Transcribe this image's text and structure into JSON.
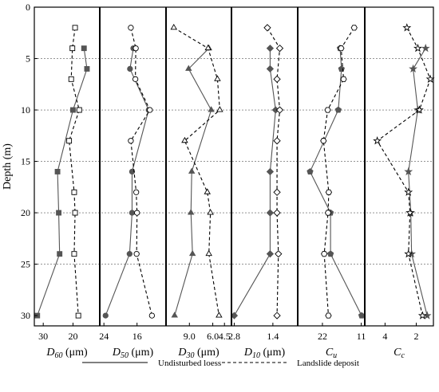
{
  "chart_data": {
    "type": "line",
    "ylabel": "Depth (m)",
    "ylim": [
      0,
      31
    ],
    "y_ticks": [
      "0",
      "5",
      "10",
      "15",
      "20",
      "25",
      "30"
    ],
    "gridlines_depth": [
      5,
      10,
      15,
      20,
      25
    ],
    "legend": {
      "position": "bottom",
      "entries": [
        {
          "label": "Undisturbed loess",
          "style": "solid"
        },
        {
          "label": "Landslide deposit",
          "style": "dashed"
        }
      ]
    },
    "panels": [
      {
        "xlabel_main": "D",
        "xlabel_sub": "60",
        "xlabel_unit": " (μm)",
        "xlim": [
          33,
          11
        ],
        "x_ticks": [
          30,
          20
        ],
        "series": [
          {
            "name": "Undisturbed loess",
            "marker": "square-filled",
            "depth": [
              4,
              6,
              10,
              16,
              20,
              24,
              30
            ],
            "values": [
              16.3,
              15.3,
              20.0,
              25.2,
              24.8,
              24.5,
              32.0
            ]
          },
          {
            "name": "Landslide deposit",
            "marker": "square-open",
            "depth": [
              2,
              4,
              7,
              10,
              13,
              18,
              20,
              24,
              30
            ],
            "values": [
              19.3,
              20.2,
              20.6,
              17.9,
              21.3,
              19.6,
              19.3,
              19.6,
              18.2
            ]
          }
        ]
      },
      {
        "xlabel_main": "D",
        "xlabel_sub": "50",
        "xlabel_unit": " (μm)",
        "xlim": [
          25,
          9
        ],
        "x_ticks": [
          24,
          16
        ],
        "series": [
          {
            "name": "Undisturbed loess",
            "marker": "circle-filled",
            "depth": [
              4,
              6,
              10,
              16,
              20,
              24,
              30
            ],
            "values": [
              16.9,
              17.7,
              13.2,
              17.2,
              17.2,
              17.8,
              23.6
            ]
          },
          {
            "name": "Landslide deposit",
            "marker": "circle-open",
            "depth": [
              2,
              4,
              7,
              10,
              13,
              18,
              20,
              24,
              30
            ],
            "values": [
              17.5,
              16.3,
              16.4,
              12.9,
              17.5,
              16.2,
              16.0,
              16.1,
              12.4
            ]
          }
        ]
      },
      {
        "xlabel_main": "D",
        "xlabel_sub": "30",
        "xlabel_unit": " (μm)",
        "xlim": [
          12,
          3.6
        ],
        "x_ticks": [
          9.0,
          6.0,
          4.5
        ],
        "series": [
          {
            "name": "Undisturbed loess",
            "marker": "triangle-filled",
            "depth": [
              4,
              6,
              10,
              16,
              20,
              24,
              30
            ],
            "values": [
              6.5,
              9.1,
              6.2,
              8.7,
              8.8,
              8.6,
              10.9
            ]
          },
          {
            "name": "Landslide deposit",
            "marker": "triangle-open",
            "depth": [
              2,
              4,
              7,
              10,
              13,
              18,
              20,
              24,
              30
            ],
            "values": [
              11.0,
              6.6,
              5.4,
              5.1,
              9.6,
              6.7,
              6.3,
              6.5,
              5.2
            ]
          }
        ]
      },
      {
        "xlabel_main": "D",
        "xlabel_sub": "10",
        "xlabel_unit": " (μm)",
        "xlim": [
          2.9,
          0.5
        ],
        "x_ticks": [
          2.8,
          1.4
        ],
        "series": [
          {
            "name": "Undisturbed loess",
            "marker": "diamond-filled",
            "depth": [
              4,
              6,
              10,
              16,
              20,
              24,
              30
            ],
            "values": [
              1.5,
              1.5,
              1.3,
              1.5,
              1.5,
              1.5,
              2.8
            ]
          },
          {
            "name": "Landslide deposit",
            "marker": "diamond-open",
            "depth": [
              2,
              4,
              7,
              10,
              13,
              18,
              20,
              24,
              30
            ],
            "values": [
              1.6,
              1.15,
              1.25,
              1.15,
              1.25,
              1.25,
              1.25,
              1.2,
              1.25
            ]
          }
        ]
      },
      {
        "xlabel_main": "C",
        "xlabel_sub": "u",
        "xlabel_unit": "",
        "xlim": [
          29,
          10
        ],
        "x_ticks": [
          22,
          11
        ],
        "series": [
          {
            "name": "Undisturbed loess",
            "marker": "pentagon-filled",
            "depth": [
              4,
              6,
              10,
              16,
              20,
              24,
              30
            ],
            "values": [
              17.0,
              16.6,
              17.5,
              25.5,
              19.7,
              19.7,
              10.9
            ]
          },
          {
            "name": "Landslide deposit",
            "marker": "hexagon-open",
            "depth": [
              2,
              4,
              7,
              10,
              13,
              18,
              20,
              24,
              30
            ],
            "values": [
              13.0,
              16.7,
              16.0,
              20.5,
              21.7,
              20.2,
              20.4,
              21.5,
              20.3
            ]
          }
        ]
      },
      {
        "xlabel_main": "C",
        "xlabel_sub": "c",
        "xlabel_unit": "",
        "xlim": [
          5.3,
          0.9
        ],
        "x_ticks": [
          4,
          2
        ],
        "series": [
          {
            "name": "Undisturbed loess",
            "marker": "star-filled",
            "depth": [
              4,
              6,
              10,
              16,
              20,
              24,
              30
            ],
            "values": [
              1.4,
              2.2,
              1.9,
              2.5,
              2.35,
              2.3,
              1.3
            ]
          },
          {
            "name": "Landslide deposit",
            "marker": "star-open",
            "depth": [
              2,
              4,
              7,
              10,
              13,
              18,
              20,
              24,
              30
            ],
            "values": [
              2.6,
              1.9,
              1.1,
              1.8,
              4.5,
              2.5,
              2.4,
              2.5,
              1.6
            ]
          }
        ]
      }
    ]
  }
}
